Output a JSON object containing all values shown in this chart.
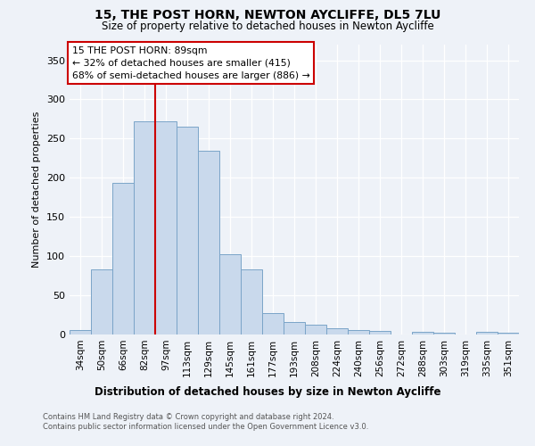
{
  "title1": "15, THE POST HORN, NEWTON AYCLIFFE, DL5 7LU",
  "title2": "Size of property relative to detached houses in Newton Aycliffe",
  "xlabel": "Distribution of detached houses by size in Newton Aycliffe",
  "ylabel": "Number of detached properties",
  "categories": [
    "34sqm",
    "50sqm",
    "66sqm",
    "82sqm",
    "97sqm",
    "113sqm",
    "129sqm",
    "145sqm",
    "161sqm",
    "177sqm",
    "193sqm",
    "208sqm",
    "224sqm",
    "240sqm",
    "256sqm",
    "272sqm",
    "288sqm",
    "303sqm",
    "319sqm",
    "335sqm",
    "351sqm"
  ],
  "values": [
    6,
    83,
    193,
    272,
    272,
    265,
    235,
    103,
    83,
    27,
    16,
    13,
    8,
    6,
    4,
    0,
    3,
    2,
    0,
    3,
    2
  ],
  "bar_color": "#c9d9ec",
  "bar_edge_color": "#7aa4c8",
  "vline_x": 3.5,
  "vline_color": "#cc0000",
  "annotation_text": "15 THE POST HORN: 89sqm\n← 32% of detached houses are smaller (415)\n68% of semi-detached houses are larger (886) →",
  "annotation_box_color": "#ffffff",
  "annotation_box_edge": "#cc0000",
  "ylim": [
    0,
    370
  ],
  "yticks": [
    0,
    50,
    100,
    150,
    200,
    250,
    300,
    350
  ],
  "footer1": "Contains HM Land Registry data © Crown copyright and database right 2024.",
  "footer2": "Contains public sector information licensed under the Open Government Licence v3.0.",
  "bg_color": "#eef2f8",
  "plot_bg_color": "#eef2f8"
}
